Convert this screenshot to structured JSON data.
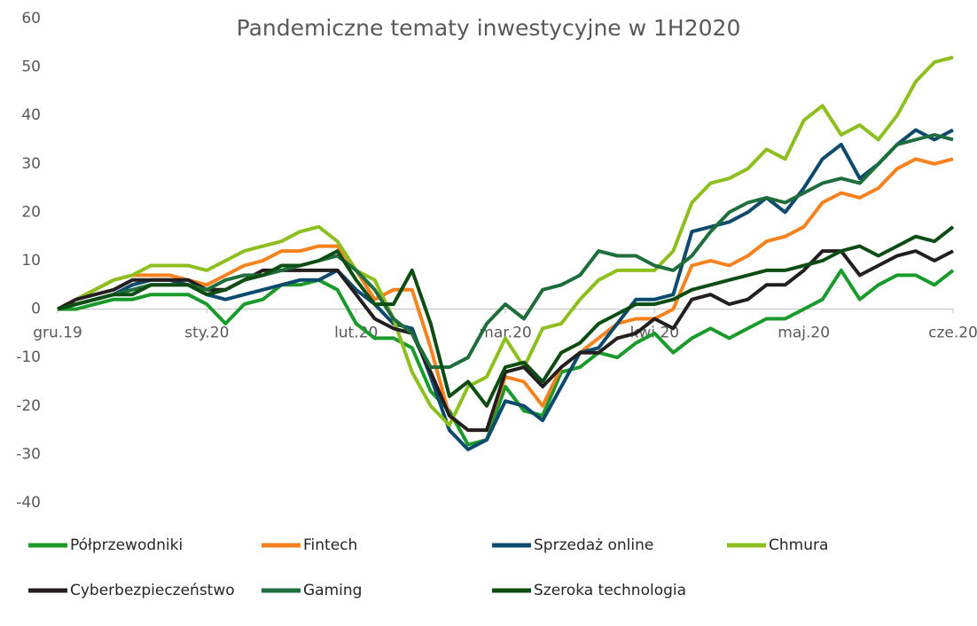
{
  "chart_data": {
    "type": "line",
    "title": "Pandemiczne tematy inwestycyjne w 1H2020",
    "categories": [
      "gru.19",
      null,
      null,
      null,
      null,
      null,
      null,
      null,
      "sty.20",
      null,
      null,
      null,
      null,
      null,
      null,
      null,
      "lut.20",
      null,
      null,
      null,
      null,
      null,
      null,
      null,
      "mar.20",
      null,
      null,
      null,
      null,
      null,
      null,
      null,
      "kwi.20",
      null,
      null,
      null,
      null,
      null,
      null,
      null,
      "maj.20",
      null,
      null,
      null,
      null,
      null,
      null,
      null,
      "cze.20"
    ],
    "ylim": [
      -40,
      60
    ],
    "yticks": [
      -40,
      -30,
      -20,
      -10,
      0,
      10,
      20,
      30,
      40,
      50,
      60
    ],
    "grid": false,
    "series": [
      {
        "name": "Półprzewodniki",
        "color": "#1a9a2a",
        "values": [
          0,
          0,
          1,
          2,
          2,
          3,
          3,
          3,
          1,
          -3,
          1,
          2,
          5,
          5,
          6,
          4,
          -3,
          -6,
          -6,
          -8,
          -17,
          -21,
          -28,
          -27,
          -16,
          -21,
          -22,
          -13,
          -12,
          -9,
          -10,
          -7,
          -5,
          -9,
          -6,
          -4,
          -6,
          -4,
          -2,
          -2,
          0,
          2,
          8,
          2,
          5,
          7,
          7,
          5,
          8
        ]
      },
      {
        "name": "Fintech",
        "color": "#f5821f",
        "values": [
          0,
          2,
          4,
          6,
          7,
          7,
          7,
          6,
          5,
          7,
          9,
          10,
          12,
          12,
          13,
          13,
          8,
          2,
          4,
          4,
          -8,
          -22,
          -25,
          -25,
          -14,
          -15,
          -20,
          -12,
          -9,
          -6,
          -3,
          -2,
          -2,
          0,
          9,
          10,
          9,
          11,
          14,
          15,
          17,
          22,
          24,
          23,
          25,
          29,
          31,
          30,
          31
        ]
      },
      {
        "name": "Sprzedaż online",
        "color": "#0d4a6e",
        "values": [
          0,
          1,
          2,
          3,
          5,
          6,
          6,
          5,
          3,
          2,
          3,
          4,
          5,
          6,
          6,
          8,
          4,
          1,
          -3,
          -4,
          -14,
          -25,
          -29,
          -27,
          -19,
          -20,
          -23,
          -16,
          -9,
          -8,
          -3,
          2,
          2,
          3,
          16,
          17,
          18,
          20,
          23,
          20,
          25,
          31,
          34,
          27,
          30,
          34,
          37,
          35,
          37
        ]
      },
      {
        "name": "Chmura",
        "color": "#8dbf1f",
        "values": [
          0,
          2,
          4,
          6,
          7,
          9,
          9,
          9,
          8,
          10,
          12,
          13,
          14,
          16,
          17,
          14,
          8,
          6,
          -2,
          -13,
          -20,
          -24,
          -16,
          -14,
          -6,
          -12,
          -4,
          -3,
          2,
          6,
          8,
          8,
          8,
          12,
          22,
          26,
          27,
          29,
          33,
          31,
          39,
          42,
          36,
          38,
          35,
          40,
          47,
          51,
          52
        ]
      },
      {
        "name": "Cyberbezpieczeństwo",
        "color": "#231f20",
        "values": [
          0,
          2,
          3,
          4,
          6,
          6,
          6,
          6,
          4,
          4,
          6,
          8,
          8,
          8,
          8,
          8,
          3,
          -2,
          -4,
          -5,
          -13,
          -22,
          -25,
          -25,
          -13,
          -12,
          -16,
          -12,
          -9,
          -9,
          -6,
          -5,
          -2,
          -4,
          2,
          3,
          1,
          2,
          5,
          5,
          8,
          12,
          12,
          7,
          9,
          11,
          12,
          10,
          12
        ]
      },
      {
        "name": "Gaming",
        "color": "#1e6e3c",
        "values": [
          0,
          1,
          2,
          3,
          4,
          5,
          5,
          5,
          4,
          6,
          7,
          7,
          8,
          9,
          10,
          11,
          8,
          4,
          -2,
          -5,
          -12,
          -12,
          -10,
          -3,
          1,
          -2,
          4,
          5,
          7,
          12,
          11,
          11,
          9,
          8,
          11,
          16,
          20,
          22,
          23,
          22,
          24,
          26,
          27,
          26,
          30,
          34,
          35,
          36,
          35
        ]
      },
      {
        "name": "Szeroka technologia",
        "color": "#0d4d14",
        "values": [
          0,
          1,
          2,
          3,
          3,
          5,
          5,
          5,
          3,
          4,
          6,
          7,
          9,
          9,
          10,
          12,
          6,
          1,
          1,
          8,
          -3,
          -18,
          -15,
          -20,
          -12,
          -11,
          -15,
          -9,
          -7,
          -3,
          -1,
          1,
          1,
          2,
          4,
          5,
          6,
          7,
          8,
          8,
          9,
          10,
          12,
          13,
          11,
          13,
          15,
          14,
          17
        ]
      }
    ]
  }
}
